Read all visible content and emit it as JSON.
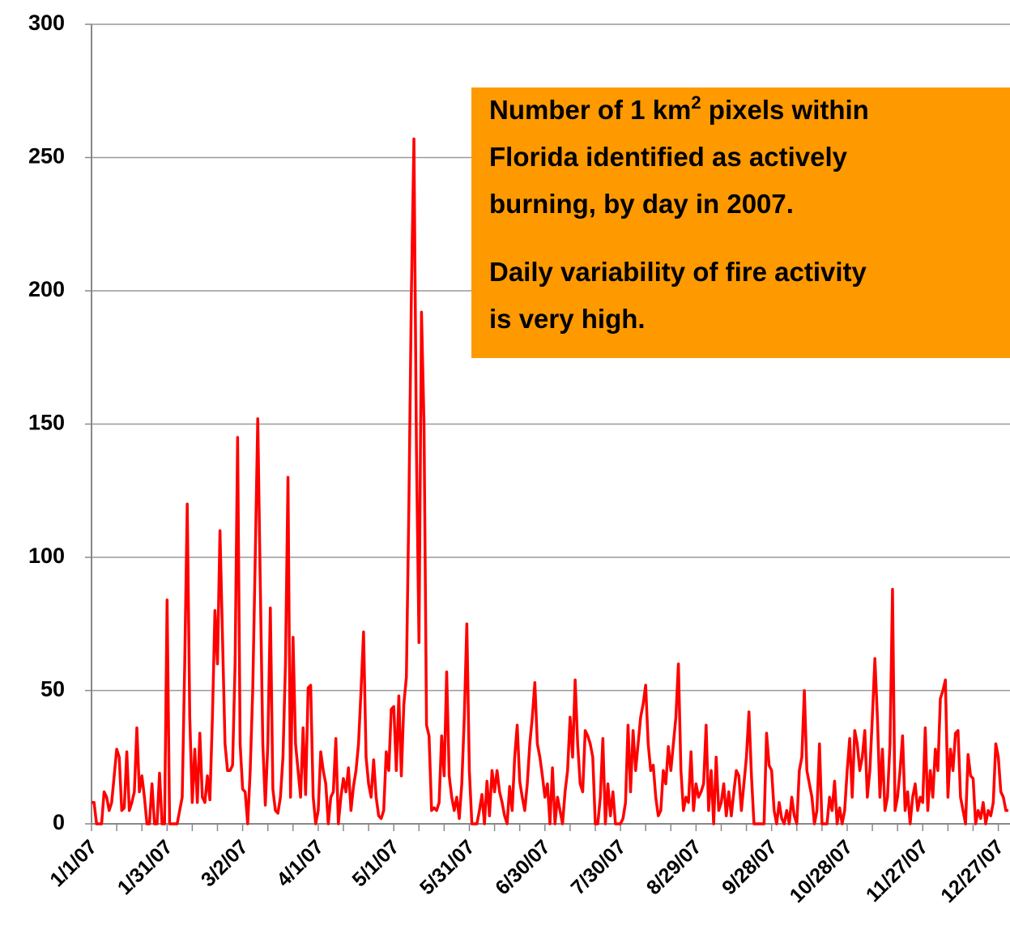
{
  "chart_data": {
    "type": "line",
    "annotation": [
      [
        "Number of 1 km",
        "2",
        " pixels within"
      ],
      [
        "Florida identified as actively"
      ],
      [
        "burning, by day in 2007."
      ],
      [
        "Daily variability of fire activity"
      ],
      [
        "is very high."
      ]
    ],
    "annotation_color": "#ff9900",
    "categories": [
      "1/1/07",
      null,
      null,
      null,
      null,
      null,
      null,
      null,
      null,
      null,
      null,
      null,
      null,
      null,
      null,
      null,
      null,
      null,
      null,
      null,
      null,
      null,
      null,
      null,
      null,
      null,
      null,
      null,
      null,
      null,
      "1/31/07",
      null,
      null,
      null,
      null,
      null,
      null,
      null,
      null,
      null,
      null,
      null,
      null,
      null,
      null,
      null,
      null,
      null,
      null,
      null,
      null,
      null,
      null,
      null,
      null,
      null,
      null,
      null,
      null,
      null,
      "3/2/07",
      null,
      null,
      null,
      null,
      null,
      null,
      null,
      null,
      null,
      null,
      null,
      null,
      null,
      null,
      null,
      null,
      null,
      null,
      null,
      null,
      null,
      null,
      null,
      null,
      null,
      null,
      null,
      null,
      null,
      "4/1/07",
      null,
      null,
      null,
      null,
      null,
      null,
      null,
      null,
      null,
      null,
      null,
      null,
      null,
      null,
      null,
      null,
      null,
      null,
      null,
      null,
      null,
      null,
      null,
      null,
      null,
      null,
      null,
      null,
      null,
      "5/1/07",
      null,
      null,
      null,
      null,
      null,
      null,
      null,
      null,
      null,
      null,
      null,
      null,
      null,
      null,
      null,
      null,
      null,
      null,
      null,
      null,
      null,
      null,
      null,
      null,
      null,
      null,
      null,
      null,
      null,
      "5/31/07",
      null,
      null,
      null,
      null,
      null,
      null,
      null,
      null,
      null,
      null,
      null,
      null,
      null,
      null,
      null,
      null,
      null,
      null,
      null,
      null,
      null,
      null,
      null,
      null,
      null,
      null,
      null,
      null,
      null,
      "6/30/07",
      null,
      null,
      null,
      null,
      null,
      null,
      null,
      null,
      null,
      null,
      null,
      null,
      null,
      null,
      null,
      null,
      null,
      null,
      null,
      null,
      null,
      null,
      null,
      null,
      null,
      null,
      null,
      null,
      null,
      "7/30/07",
      null,
      null,
      null,
      null,
      null,
      null,
      null,
      null,
      null,
      null,
      null,
      null,
      null,
      null,
      null,
      null,
      null,
      null,
      null,
      null,
      null,
      null,
      null,
      null,
      null,
      null,
      null,
      null,
      null,
      "8/29/07",
      null,
      null,
      null,
      null,
      null,
      null,
      null,
      null,
      null,
      null,
      null,
      null,
      null,
      null,
      null,
      null,
      null,
      null,
      null,
      null,
      null,
      null,
      null,
      null,
      null,
      null,
      null,
      null,
      null,
      "9/28/07",
      null,
      null,
      null,
      null,
      null,
      null,
      null,
      null,
      null,
      null,
      null,
      null,
      null,
      null,
      null,
      null,
      null,
      null,
      null,
      null,
      null,
      null,
      null,
      null,
      null,
      null,
      null,
      null,
      null,
      "10/28/07",
      null,
      null,
      null,
      null,
      null,
      null,
      null,
      null,
      null,
      null,
      null,
      null,
      null,
      null,
      null,
      null,
      null,
      null,
      null,
      null,
      null,
      null,
      null,
      null,
      null,
      null,
      null,
      null,
      null,
      "11/27/07",
      null,
      null,
      null,
      null,
      null,
      null,
      null,
      null,
      null,
      null,
      null,
      null,
      null,
      null,
      null,
      null,
      null,
      null,
      null,
      null,
      null,
      null,
      null,
      null,
      null,
      null,
      null,
      null,
      null,
      "12/27/07",
      null,
      null,
      null,
      null
    ],
    "values": [
      8,
      8,
      0,
      0,
      0,
      12,
      10,
      5,
      8,
      18,
      28,
      25,
      5,
      6,
      27,
      5,
      8,
      12,
      36,
      12,
      18,
      10,
      0,
      0,
      15,
      0,
      0,
      19,
      0,
      0,
      84,
      0,
      0,
      0,
      0,
      5,
      10,
      60,
      120,
      40,
      8,
      28,
      8,
      34,
      10,
      8,
      18,
      9,
      40,
      80,
      60,
      110,
      70,
      30,
      20,
      20,
      22,
      60,
      145,
      30,
      13,
      12,
      0,
      20,
      50,
      100,
      152,
      90,
      30,
      7,
      30,
      81,
      13,
      5,
      4,
      10,
      25,
      60,
      130,
      10,
      70,
      30,
      20,
      10,
      36,
      11,
      51,
      52,
      10,
      0,
      5,
      27,
      20,
      15,
      0,
      10,
      12,
      32,
      0,
      10,
      17,
      12,
      21,
      5,
      14,
      20,
      30,
      50,
      72,
      25,
      15,
      10,
      24,
      10,
      3,
      2,
      5,
      27,
      20,
      43,
      44,
      20,
      48,
      18,
      45,
      55,
      120,
      200,
      257,
      140,
      68,
      192,
      150,
      37,
      33,
      5,
      6,
      5,
      8,
      33,
      18,
      57,
      18,
      10,
      5,
      10,
      2,
      15,
      40,
      75,
      20,
      0,
      0,
      0,
      5,
      11,
      0,
      16,
      3,
      20,
      12,
      20,
      12,
      8,
      3,
      0,
      14,
      5,
      25,
      37,
      16,
      10,
      5,
      15,
      30,
      40,
      53,
      30,
      25,
      18,
      10,
      15,
      0,
      21,
      0,
      10,
      5,
      0,
      12,
      20,
      40,
      25,
      54,
      30,
      15,
      12,
      35,
      33,
      30,
      25,
      0,
      0,
      10,
      32,
      0,
      15,
      3,
      12,
      0,
      0,
      0,
      2,
      8,
      37,
      12,
      35,
      20,
      30,
      40,
      45,
      52,
      30,
      20,
      22,
      10,
      3,
      5,
      20,
      15,
      29,
      20,
      30,
      40,
      60,
      20,
      5,
      10,
      8,
      27,
      5,
      15,
      10,
      12,
      15,
      37,
      5,
      20,
      0,
      25,
      5,
      8,
      15,
      3,
      12,
      3,
      12,
      20,
      18,
      5,
      15,
      25,
      42,
      18,
      0,
      0,
      0,
      0,
      0,
      34,
      22,
      20,
      5,
      0,
      8,
      2,
      0,
      5,
      0,
      10,
      3,
      0,
      20,
      25,
      50,
      20,
      15,
      10,
      0,
      5,
      30,
      0,
      0,
      0,
      10,
      5,
      16,
      0,
      6,
      0,
      5,
      20,
      32,
      10,
      35,
      30,
      20,
      25,
      35,
      10,
      20,
      40,
      62,
      40,
      10,
      28,
      5,
      10,
      30,
      88,
      5,
      10,
      20,
      33,
      5,
      12,
      0,
      10,
      15,
      5,
      10,
      8,
      36,
      5,
      20,
      10,
      28,
      20,
      47,
      50,
      54,
      10,
      28,
      20,
      34,
      35,
      10,
      5,
      0,
      26,
      18,
      17,
      0,
      5,
      2,
      8,
      0,
      5,
      3,
      8,
      30,
      25,
      12,
      10,
      5,
      5
    ],
    "color": "#ff0000",
    "ylim": [
      0,
      300
    ],
    "yticks": [
      0,
      50,
      100,
      150,
      200,
      250,
      300
    ],
    "grid": true
  }
}
